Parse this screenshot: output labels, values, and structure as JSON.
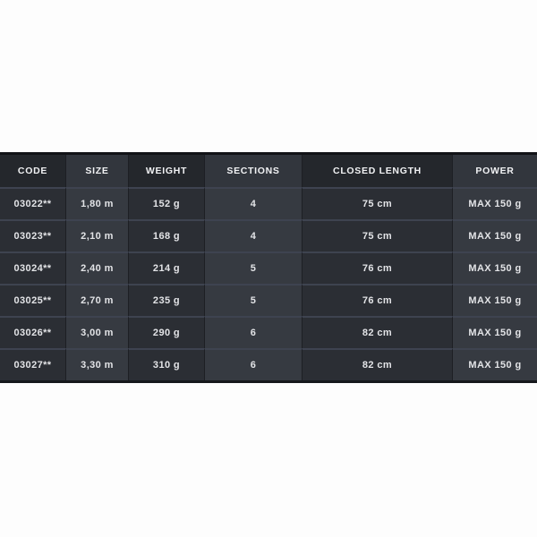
{
  "page": {
    "background_color": "#fdfdfd"
  },
  "table": {
    "colors": {
      "header_dark_cell": "#24272c",
      "header_light_cell": "#32363d",
      "row_dark_cell": "#2b2e34",
      "row_light_cell": "#363a41",
      "row_divider": "#3e4350",
      "column_separator": "#1d1f24",
      "outer_border": "#121317",
      "header_text": "#f1f2f4",
      "cell_text": "#e3e4e7"
    },
    "columns": [
      {
        "key": "code",
        "label": "CODE"
      },
      {
        "key": "size",
        "label": "SIZE"
      },
      {
        "key": "weight",
        "label": "WEIGHT"
      },
      {
        "key": "sections",
        "label": "SECTIONS"
      },
      {
        "key": "closed_length",
        "label": "CLOSED LENGTH"
      },
      {
        "key": "power",
        "label": "POWER"
      }
    ],
    "rows": [
      [
        "03022**",
        "1,80 m",
        "152 g",
        "4",
        "75 cm",
        "MAX 150 g"
      ],
      [
        "03023**",
        "2,10 m",
        "168 g",
        "4",
        "75 cm",
        "MAX 150 g"
      ],
      [
        "03024**",
        "2,40 m",
        "214 g",
        "5",
        "76 cm",
        "MAX 150 g"
      ],
      [
        "03025**",
        "2,70 m",
        "235 g",
        "5",
        "76 cm",
        "MAX 150 g"
      ],
      [
        "03026**",
        "3,00 m",
        "290 g",
        "6",
        "82 cm",
        "MAX 150 g"
      ],
      [
        "03027**",
        "3,30 m",
        "310 g",
        "6",
        "82 cm",
        "MAX 150 g"
      ]
    ]
  }
}
